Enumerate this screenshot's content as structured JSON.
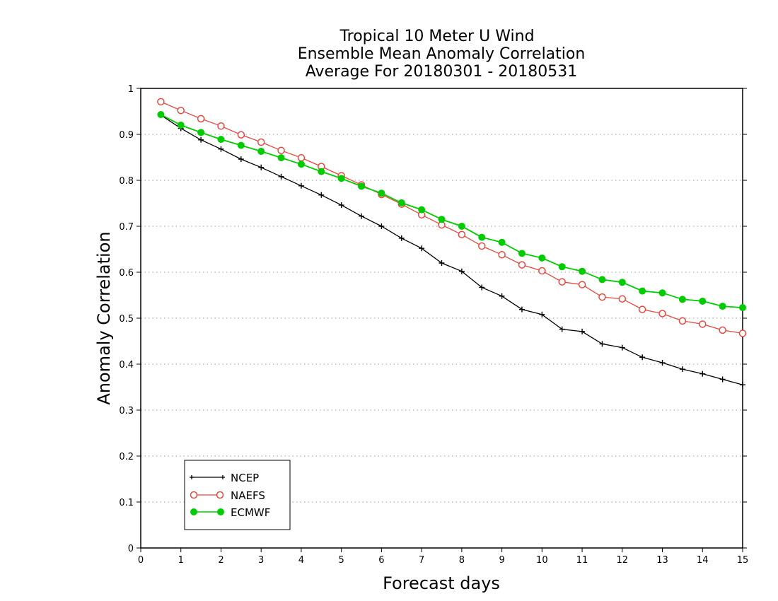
{
  "chart_data": {
    "type": "line",
    "title_lines": [
      "Tropical 10 Meter U Wind",
      "Ensemble Mean Anomaly Correlation",
      "Average For 20180301 - 20180531"
    ],
    "xlabel": "Forecast days",
    "ylabel": "Anomaly Correlation",
    "xlim": [
      0,
      15
    ],
    "ylim": [
      0,
      1
    ],
    "x_ticks": [
      "0",
      "1",
      "2",
      "3",
      "4",
      "5",
      "6",
      "7",
      "8",
      "9",
      "10",
      "11",
      "12",
      "13",
      "14",
      "15"
    ],
    "y_ticks": [
      "0",
      "0.1",
      "0.2",
      "0.3",
      "0.4",
      "0.5",
      "0.6",
      "0.7",
      "0.8",
      "0.9",
      "1"
    ],
    "grid": "horizontal dotted",
    "legend_position": "bottom-left",
    "x": [
      0.5,
      1,
      1.5,
      2,
      2.5,
      3,
      3.5,
      4,
      4.5,
      5,
      5.5,
      6,
      6.5,
      7,
      7.5,
      8,
      8.5,
      9,
      9.5,
      10,
      10.5,
      11,
      11.5,
      12,
      12.5,
      13,
      13.5,
      14,
      14.5,
      15
    ],
    "series": [
      {
        "name": "NCEP",
        "color": "#000000",
        "marker": "plus",
        "values": [
          0.942,
          0.913,
          0.888,
          0.868,
          0.846,
          0.828,
          0.808,
          0.788,
          0.768,
          0.746,
          0.722,
          0.7,
          0.674,
          0.652,
          0.62,
          0.602,
          0.567,
          0.548,
          0.519,
          0.508,
          0.476,
          0.471,
          0.444,
          0.436,
          0.415,
          0.403,
          0.389,
          0.379,
          0.367,
          0.355
        ]
      },
      {
        "name": "NAEFS",
        "color": "#e8473f",
        "marker": "open-circle",
        "values": [
          0.971,
          0.952,
          0.934,
          0.918,
          0.899,
          0.883,
          0.865,
          0.849,
          0.83,
          0.81,
          0.79,
          0.769,
          0.748,
          0.725,
          0.703,
          0.682,
          0.657,
          0.638,
          0.616,
          0.603,
          0.579,
          0.573,
          0.546,
          0.542,
          0.519,
          0.51,
          0.494,
          0.487,
          0.474,
          0.467
        ]
      },
      {
        "name": "ECMWF",
        "color": "#00cc00",
        "marker": "filled-circle",
        "values": [
          0.943,
          0.92,
          0.904,
          0.889,
          0.876,
          0.863,
          0.849,
          0.835,
          0.819,
          0.804,
          0.787,
          0.772,
          0.751,
          0.736,
          0.715,
          0.7,
          0.676,
          0.665,
          0.641,
          0.631,
          0.612,
          0.602,
          0.584,
          0.578,
          0.559,
          0.555,
          0.541,
          0.537,
          0.526,
          0.523
        ]
      }
    ]
  }
}
